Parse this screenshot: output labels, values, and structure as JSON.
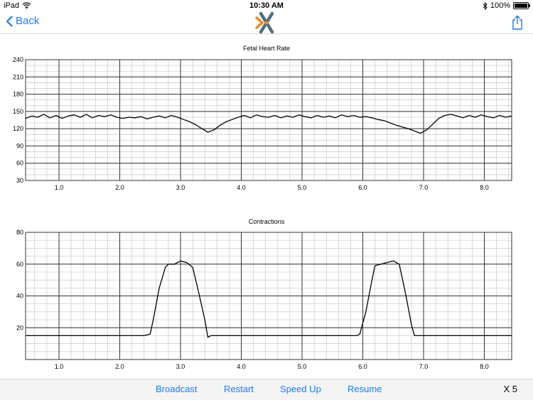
{
  "status": {
    "device": "iPad",
    "time": "10:30 AM",
    "battery": "100%"
  },
  "nav": {
    "back_label": "Back"
  },
  "toolbar": {
    "broadcast": "Broadcast",
    "restart": "Restart",
    "speed_up": "Speed Up",
    "resume": "Resume",
    "speed": "X 5"
  },
  "colors": {
    "accent": "#1a7cf0",
    "logo_orange": "#f08a24",
    "logo_slate": "#4f6d82"
  },
  "icons": [
    "wifi-icon",
    "bluetooth-icon",
    "battery-icon",
    "back-chevron-icon",
    "app-logo-icon",
    "share-icon"
  ],
  "chart_data": [
    {
      "type": "line",
      "title": "Fetal Heart Rate",
      "xlabel": "",
      "ylabel": "",
      "xlim": [
        0.45,
        8.45
      ],
      "ylim": [
        30,
        240
      ],
      "yticks": [
        30,
        60,
        90,
        120,
        150,
        180,
        210,
        240
      ],
      "xticks": [
        "1.0",
        "2.0",
        "3.0",
        "4.0",
        "5.0",
        "6.0",
        "7.0",
        "8.0"
      ],
      "grid": true,
      "series": [
        {
          "x": [
            0.45,
            0.55,
            0.65,
            0.75,
            0.85,
            0.95,
            1.05,
            1.15,
            1.25,
            1.35,
            1.45,
            1.55,
            1.65,
            1.75,
            1.85,
            1.95,
            2.05,
            2.15,
            2.25,
            2.35,
            2.45,
            2.55,
            2.65,
            2.75,
            2.85,
            2.95,
            3.05,
            3.15,
            3.25,
            3.35,
            3.45,
            3.55,
            3.65,
            3.75,
            3.85,
            3.95,
            4.05,
            4.15,
            4.25,
            4.35,
            4.45,
            4.55,
            4.65,
            4.75,
            4.85,
            4.95,
            5.05,
            5.15,
            5.25,
            5.35,
            5.45,
            5.55,
            5.65,
            5.75,
            5.85,
            5.95,
            6.05,
            6.15,
            6.25,
            6.35,
            6.45,
            6.55,
            6.65,
            6.75,
            6.85,
            6.95,
            7.05,
            7.15,
            7.25,
            7.35,
            7.45,
            7.55,
            7.65,
            7.75,
            7.85,
            7.95,
            8.05,
            8.15,
            8.25,
            8.35,
            8.45
          ],
          "y": [
            138,
            142,
            140,
            145,
            139,
            143,
            138,
            142,
            144,
            140,
            145,
            139,
            143,
            141,
            144,
            140,
            138,
            140,
            139,
            141,
            137,
            140,
            142,
            139,
            143,
            140,
            136,
            132,
            127,
            120,
            114,
            118,
            126,
            132,
            136,
            140,
            143,
            139,
            144,
            141,
            140,
            143,
            139,
            142,
            140,
            144,
            141,
            139,
            143,
            140,
            142,
            139,
            144,
            141,
            143,
            140,
            141,
            139,
            136,
            134,
            130,
            126,
            123,
            120,
            116,
            112,
            118,
            128,
            138,
            143,
            145,
            142,
            139,
            143,
            140,
            144,
            141,
            139,
            143,
            140,
            142
          ]
        }
      ]
    },
    {
      "type": "line",
      "title": "Contractions",
      "xlabel": "",
      "ylabel": "",
      "xlim": [
        0.45,
        8.45
      ],
      "ylim": [
        0,
        80
      ],
      "yticks": [
        20,
        40,
        60,
        80
      ],
      "xticks": [
        "1.0",
        "2.0",
        "3.0",
        "4.0",
        "5.0",
        "6.0",
        "7.0",
        "8.0"
      ],
      "grid": true,
      "series": [
        {
          "x": [
            0.45,
            1.0,
            1.5,
            2.0,
            2.4,
            2.5,
            2.55,
            2.65,
            2.75,
            2.8,
            2.9,
            3.0,
            3.1,
            3.2,
            3.3,
            3.4,
            3.45,
            3.5,
            4.0,
            5.0,
            5.8,
            5.9,
            5.95,
            6.05,
            6.15,
            6.2,
            6.3,
            6.4,
            6.5,
            6.6,
            6.7,
            6.8,
            6.85,
            6.9,
            7.5,
            8.0,
            8.45
          ],
          "y": [
            15,
            15,
            15,
            15,
            15,
            16,
            25,
            45,
            58,
            60,
            60,
            62,
            61,
            58,
            42,
            25,
            14,
            15,
            15,
            15,
            15,
            15,
            16,
            30,
            50,
            59,
            60,
            61,
            62,
            60,
            42,
            22,
            15,
            15,
            15,
            15,
            15
          ]
        }
      ]
    }
  ]
}
